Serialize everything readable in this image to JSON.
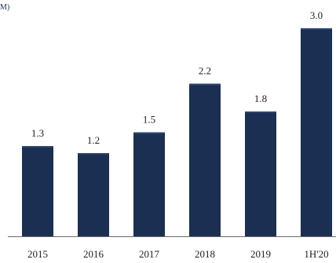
{
  "chart_data": {
    "type": "bar",
    "title": "",
    "unit_label": "M)",
    "categories": [
      "2015",
      "2016",
      "2017",
      "2018",
      "2019",
      "1H'20"
    ],
    "values": [
      1.3,
      1.2,
      1.5,
      2.2,
      1.8,
      3.0
    ],
    "data_labels": [
      "1.3",
      "1.2",
      "1.5",
      "2.2",
      "1.8",
      "3.0"
    ],
    "xlabel": "",
    "ylabel": "",
    "ylim": [
      0,
      3.0
    ],
    "grid": false,
    "legend": "none",
    "colors": {
      "bar": "#1b2f52",
      "bar_highlight": "#2a4270",
      "baseline": "#6b6b6b",
      "text": "#1f1f1f"
    }
  }
}
